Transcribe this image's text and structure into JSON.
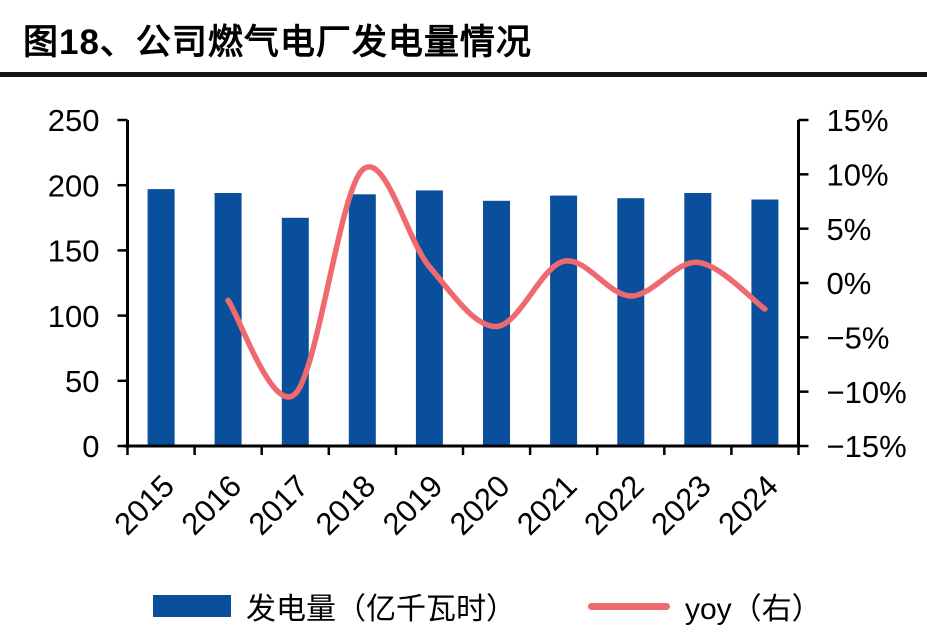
{
  "figure": {
    "title": "图18、公司燃气电厂发电量情况"
  },
  "chart_data": {
    "type": "bar",
    "subtype": "bar+line-combo",
    "categories": [
      "2015",
      "2016",
      "2017",
      "2018",
      "2019",
      "2020",
      "2021",
      "2022",
      "2023",
      "2024"
    ],
    "series": [
      {
        "name": "发电量（亿千瓦时）",
        "type": "bar",
        "axis": "left",
        "color": "#0A4F9C",
        "values": [
          197,
          194,
          175,
          193,
          196,
          188,
          192,
          190,
          194,
          189
        ]
      },
      {
        "name": "yoy（右）",
        "type": "line",
        "axis": "right",
        "color": "#EF6A6E",
        "unit": "%",
        "values": [
          null,
          -1.6,
          -10.2,
          10.4,
          1.5,
          -4.0,
          2.0,
          -1.2,
          1.9,
          -2.4
        ]
      }
    ],
    "left_axis": {
      "range": [
        0,
        250
      ],
      "tick_values": [
        0,
        50,
        100,
        150,
        200,
        250
      ]
    },
    "right_axis": {
      "range_pct": [
        -15,
        15
      ],
      "tick_values": [
        15,
        10,
        5,
        0,
        -5,
        -10,
        -15
      ],
      "tick_labels": [
        "15%",
        "10%",
        "5%",
        "0%",
        "−5%",
        "−10%",
        "−15%"
      ]
    },
    "grid": false,
    "legend_position": "bottom",
    "axis_color": "#000000"
  },
  "legend": {
    "items": [
      {
        "label": "发电量（亿千瓦时）",
        "swatch": "bar"
      },
      {
        "label": "yoy（右）",
        "swatch": "line"
      }
    ]
  }
}
